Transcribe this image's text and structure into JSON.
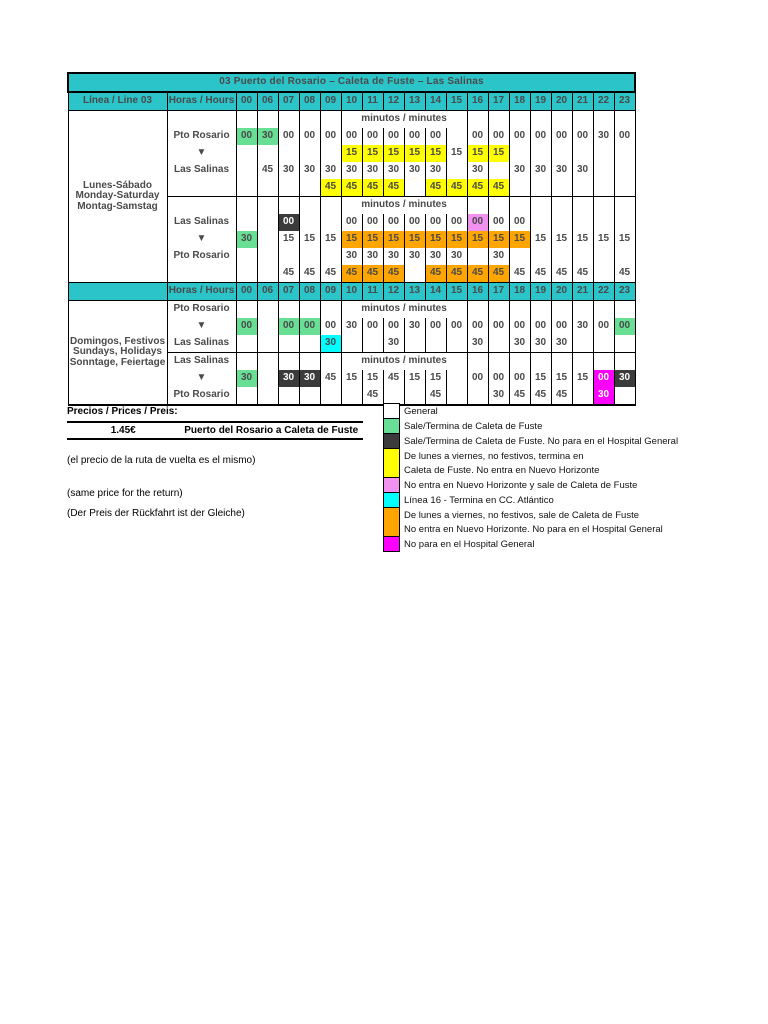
{
  "colors": {
    "teal": "#2BC4C9",
    "green": "#68DF95",
    "yellow": "#FFFF00",
    "orange": "#FFA500",
    "pink": "#F192F0",
    "cyan": "#00FFFF",
    "magenta": "#FF00FF",
    "dark": "#3B3B3B",
    "white": "#FFFFFF"
  },
  "timetable": {
    "title": "03 Puerto del Rosario – Caleta de Fuste – Las Salinas",
    "linea_label": "Línea / Line 03",
    "horas_label": "Horas / Hours",
    "hours": [
      "00",
      "06",
      "07",
      "08",
      "09",
      "10",
      "11",
      "12",
      "13",
      "14",
      "15",
      "16",
      "17",
      "18",
      "19",
      "20",
      "21",
      "22",
      "23"
    ],
    "minutes_header": "minutos / minutes",
    "direction_arrow": "▼",
    "day_groups": [
      {
        "label_lines": [
          "Lunes-Sábado",
          "Monday-Saturday",
          "Montag-Samstag"
        ],
        "blocks": [
          {
            "type": "monsat",
            "from": "Pto Rosario",
            "to": "Las Salinas",
            "rows": [
              [
                "00:g",
                "30:g",
                "00",
                "00",
                "00",
                "00",
                "00",
                "00",
                "00",
                "00",
                "",
                "00",
                "00",
                "00",
                "00",
                "00",
                "00",
                "30",
                "00"
              ],
              [
                "",
                "",
                "",
                "",
                "",
                "15:y",
                "15:y",
                "15:y",
                "15:y",
                "15:y",
                "15",
                "15:y",
                "15:y",
                "",
                "",
                "",
                "",
                "",
                ""
              ],
              [
                "",
                "45",
                "30",
                "30",
                "30",
                "30",
                "30",
                "30",
                "30",
                "30",
                "",
                "30",
                "",
                "30",
                "30",
                "30",
                "30",
                "",
                ""
              ],
              [
                "",
                "",
                "",
                "",
                "45:y",
                "45:y",
                "45:y",
                "45:y",
                "",
                "45:y",
                "45:y",
                "45:y",
                "45:y",
                "",
                "",
                "",
                "",
                "",
                ""
              ]
            ]
          },
          {
            "type": "monsat",
            "from": "Las Salinas",
            "to": "Pto Rosario",
            "rows": [
              [
                "",
                "",
                "00:k",
                "",
                "",
                "00",
                "00",
                "00",
                "00",
                "00",
                "00",
                "00:p",
                "00",
                "00",
                "",
                "",
                "",
                "",
                ""
              ],
              [
                "30:g",
                "",
                "15",
                "15",
                "15",
                "15:o",
                "15:o",
                "15:o",
                "15:o",
                "15:o",
                "15:o",
                "15:o",
                "15:o",
                "15:o",
                "15",
                "15",
                "15",
                "15",
                "15"
              ],
              [
                "",
                "",
                "",
                "",
                "",
                "30",
                "30",
                "30",
                "30",
                "30",
                "30",
                "",
                "30",
                "",
                "",
                "",
                "",
                "",
                ""
              ],
              [
                "",
                "",
                "45",
                "45",
                "45",
                "45:o",
                "45:o",
                "45:o",
                "",
                "45:o",
                "45:o",
                "45:o",
                "45:o",
                "45",
                "45",
                "45",
                "45",
                "",
                "45"
              ]
            ]
          }
        ]
      },
      {
        "label_lines": [
          "Domingos, Festivos",
          "Sundays, Holidays",
          "Sonntage, Feiertage"
        ],
        "blocks": [
          {
            "type": "sunday",
            "from": "Pto Rosario",
            "to": "Las Salinas",
            "rows": [
              [
                "00:g",
                "",
                "00:g",
                "00:g",
                "00",
                "30",
                "00",
                "00",
                "30",
                "00",
                "00",
                "00",
                "00",
                "00",
                "00",
                "00",
                "30",
                "00",
                "00:g"
              ],
              [
                "",
                "",
                "",
                "",
                "30:c",
                "",
                "",
                "30",
                "",
                "",
                "",
                "30",
                "",
                "30",
                "30",
                "30",
                "",
                "",
                ""
              ]
            ]
          },
          {
            "type": "sunday",
            "from": "Las Salinas",
            "to": "Pto Rosario",
            "rows": [
              [
                "30:g",
                "",
                "30:k",
                "30:k",
                "45",
                "15",
                "15",
                "45",
                "15",
                "15",
                "",
                "00",
                "00",
                "00",
                "15",
                "15",
                "15",
                "00:m",
                "30:k"
              ],
              [
                "",
                "",
                "",
                "",
                "",
                "",
                "45",
                "",
                "",
                "45",
                "",
                "",
                "30",
                "45",
                "45",
                "45",
                "",
                "30:m",
                ""
              ]
            ]
          }
        ]
      }
    ]
  },
  "prices": {
    "heading": "Precios / Prices / Preis:",
    "amount": "1.45€",
    "route": "Puerto del Rosario a Caleta de Fuste",
    "notes": [
      "(el precio de la ruta de vuelta es el mismo)",
      "(same price for the return)",
      "(Der Preis der Rückfahrt ist der Gleiche)"
    ]
  },
  "legend": {
    "entries": [
      {
        "color": "white",
        "lines": [
          "General"
        ]
      },
      {
        "color": "green",
        "lines": [
          "Sale/Termina de Caleta de Fuste"
        ]
      },
      {
        "color": "dark",
        "lines": [
          "Sale/Termina de Caleta de Fuste. No para en el Hospital General"
        ]
      },
      {
        "color": "yellow",
        "lines": [
          "De lunes a viernes, no festivos, termina en",
          "Caleta de Fuste. No entra en Nuevo Horizonte"
        ]
      },
      {
        "color": "pink",
        "lines": [
          "No entra en Nuevo Horizonte y sale de Caleta de Fuste"
        ]
      },
      {
        "color": "cyan",
        "lines": [
          "Línea 16 - Termina en CC. Atlántico"
        ]
      },
      {
        "color": "orange",
        "lines": [
          "De lunes a viernes, no festivos, sale de  Caleta de Fuste",
          "No entra en Nuevo Horizonte. No para en el Hospital General"
        ]
      },
      {
        "color": "magenta",
        "lines": [
          "No para en el Hospital General"
        ]
      }
    ]
  }
}
